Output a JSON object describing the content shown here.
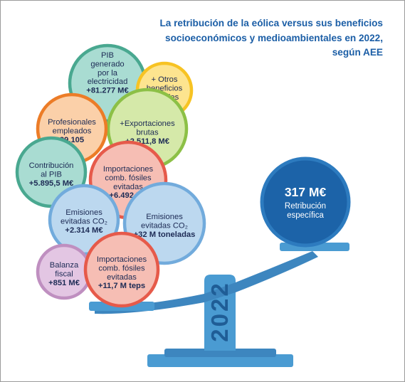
{
  "title": "La retribución de la eólica versus sus beneficios\nsocioeconómicos y medioambientales en 2022,\nsegún AEE",
  "year": "2022",
  "colors": {
    "title": "#1b5ea6",
    "scale": "#4a9bd2",
    "scale_dark": "#3d86bf",
    "weight_fill": "#1c63a8",
    "weight_ring": "#2d7bbf"
  },
  "weight": {
    "value": "317 M€",
    "lines": [
      "Retribución",
      "específica"
    ]
  },
  "bubbles": [
    {
      "id": "pib-generado",
      "fill": "#a9dcd2",
      "ring": "#49a890",
      "lines": [
        "PIB",
        "generado",
        "por la",
        "electricidad"
      ],
      "value": "+81.277 M€"
    },
    {
      "id": "otros-beneficios",
      "fill": "#fde48f",
      "ring": "#f7c323",
      "lines": [
        "+ Otros",
        "beneficios",
        "sociales"
      ],
      "value": ""
    },
    {
      "id": "exportaciones",
      "fill": "#d5e9a9",
      "ring": "#8cc046",
      "lines": [
        "+Exportaciones",
        "brutas"
      ],
      "value": "+2.511,8  M€"
    },
    {
      "id": "profesionales",
      "fill": "#fbd0a9",
      "ring": "#ec7c27",
      "lines": [
        "Profesionales",
        "empleados"
      ],
      "value": "39.105"
    },
    {
      "id": "contribucion-pib",
      "fill": "#a9dcd2",
      "ring": "#49a890",
      "lines": [
        "Contribución",
        "al PIB"
      ],
      "value": "+5.895,5 M€"
    },
    {
      "id": "importaciones-1",
      "fill": "#f6beb4",
      "ring": "#e65a4a",
      "lines": [
        "Importaciones",
        "comb. fósiles",
        "evitadas"
      ],
      "value": "+6.492 M€"
    },
    {
      "id": "emisiones-1",
      "fill": "#bcd8ef",
      "ring": "#72abdc",
      "lines": [
        "Emisiones",
        "evitadas CO₂"
      ],
      "value": "+2.314 M€"
    },
    {
      "id": "emisiones-2",
      "fill": "#bcd8ef",
      "ring": "#72abdc",
      "lines": [
        "Emisiones",
        "evitadas CO₂"
      ],
      "value": "+32 M toneladas"
    },
    {
      "id": "balanza-fiscal",
      "fill": "#e3c6e3",
      "ring": "#bf8fc0",
      "lines": [
        "Balanza",
        "fiscal"
      ],
      "value": "+851 M€"
    },
    {
      "id": "importaciones-2",
      "fill": "#f6beb4",
      "ring": "#e65a4a",
      "lines": [
        "Importaciones",
        "comb. fósiles",
        "evitadas"
      ],
      "value": "+11,7 M teps"
    }
  ]
}
